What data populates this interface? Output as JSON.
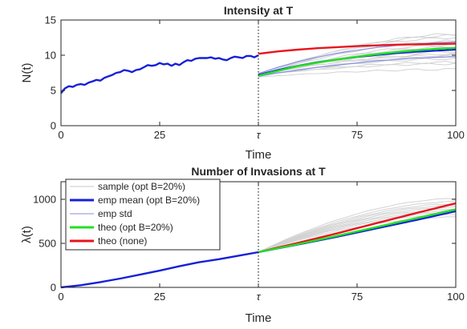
{
  "chart_data": [
    {
      "type": "line",
      "title": "Intensity at T",
      "xlabel": "Time",
      "ylabel": "N(t)",
      "xlim": [
        0,
        100
      ],
      "ylim": [
        0,
        15
      ],
      "xticks": [
        {
          "value": 0,
          "label": "0"
        },
        {
          "value": 25,
          "label": "25"
        },
        {
          "value": 50,
          "label": "τ"
        },
        {
          "value": 75,
          "label": "75"
        },
        {
          "value": 100,
          "label": "100"
        }
      ],
      "yticks": [
        {
          "value": 0,
          "label": "0"
        },
        {
          "value": 5,
          "label": "5"
        },
        {
          "value": 10,
          "label": "10"
        },
        {
          "value": 15,
          "label": "15"
        }
      ],
      "vline": 50,
      "series": [
        {
          "role": "history",
          "color": "#1520d8",
          "x": [
            0,
            1,
            2,
            3,
            4,
            5,
            6,
            7,
            8,
            9,
            10,
            11,
            12,
            13,
            14,
            15,
            16,
            17,
            18,
            19,
            20,
            21,
            22,
            23,
            24,
            25,
            26,
            27,
            28,
            29,
            30,
            31,
            32,
            33,
            34,
            35,
            36,
            37,
            38,
            39,
            40,
            41,
            42,
            43,
            44,
            45,
            46,
            47,
            48,
            49,
            50
          ],
          "y": [
            4.6,
            5.3,
            5.6,
            5.5,
            5.8,
            5.9,
            5.8,
            6.1,
            6.3,
            6.5,
            6.4,
            6.8,
            7.0,
            7.2,
            7.5,
            7.6,
            7.9,
            7.8,
            7.6,
            7.9,
            8.0,
            8.3,
            8.6,
            8.5,
            8.6,
            8.9,
            8.7,
            8.8,
            8.5,
            8.8,
            8.6,
            9.0,
            9.3,
            9.2,
            9.5,
            9.6,
            9.6,
            9.6,
            9.7,
            9.5,
            9.6,
            9.4,
            9.3,
            9.6,
            9.8,
            9.7,
            9.6,
            9.9,
            9.9,
            9.7,
            10.0
          ]
        },
        {
          "role": "theo-none",
          "color": "#e8141c",
          "x": [
            50,
            55,
            60,
            65,
            70,
            75,
            80,
            85,
            90,
            95,
            100
          ],
          "y": [
            10.2,
            10.55,
            10.8,
            11.0,
            11.15,
            11.3,
            11.4,
            11.5,
            11.55,
            11.6,
            11.65
          ]
        },
        {
          "role": "emp-mean",
          "color": "#1520d8",
          "x": [
            50,
            55,
            60,
            65,
            70,
            75,
            80,
            85,
            90,
            95,
            100
          ],
          "y": [
            7.2,
            7.9,
            8.5,
            9.0,
            9.4,
            9.75,
            10.05,
            10.3,
            10.5,
            10.65,
            10.8
          ]
        },
        {
          "role": "theo-opt",
          "color": "#22e022",
          "x": [
            50,
            55,
            60,
            65,
            70,
            75,
            80,
            85,
            90,
            95,
            100
          ],
          "y": [
            7.1,
            7.8,
            8.45,
            8.95,
            9.4,
            9.8,
            10.15,
            10.45,
            10.7,
            10.9,
            11.05
          ]
        },
        {
          "role": "emp-std",
          "color": "#8a8ee6",
          "x": [
            50,
            55,
            60,
            65,
            70,
            75,
            80,
            85,
            90,
            95,
            100
          ],
          "y_upper": [
            7.4,
            8.3,
            9.1,
            9.7,
            10.3,
            10.7,
            11.1,
            11.4,
            11.6,
            11.8,
            11.9
          ],
          "y_lower": [
            7.0,
            7.5,
            7.9,
            8.3,
            8.6,
            8.9,
            9.2,
            9.4,
            9.6,
            9.7,
            9.8
          ]
        }
      ],
      "samples": {
        "color": "#d2d2d2",
        "x_start": 50,
        "x_end": 100,
        "start_values": [
          6.9,
          7.0,
          7.1,
          7.2,
          7.3,
          7.0,
          7.2,
          7.1,
          7.4,
          7.0,
          7.2,
          7.3,
          7.1,
          7.2,
          7.0
        ],
        "end_values": [
          8.0,
          13.0,
          9.5,
          12.0,
          10.5,
          11.5,
          9.0,
          12.5,
          10.0,
          11.0,
          8.8,
          12.8,
          11.2,
          10.2,
          9.8
        ]
      }
    },
    {
      "type": "line",
      "title": "Number of Invasions at T",
      "xlabel": "Time",
      "ylabel": "λ(t)",
      "xlim": [
        0,
        100
      ],
      "ylim": [
        0,
        1200
      ],
      "xticks": [
        {
          "value": 0,
          "label": "0"
        },
        {
          "value": 25,
          "label": "25"
        },
        {
          "value": 50,
          "label": "τ"
        },
        {
          "value": 75,
          "label": "75"
        },
        {
          "value": 100,
          "label": "100"
        }
      ],
      "yticks": [
        {
          "value": 0,
          "label": "0"
        },
        {
          "value": 500,
          "label": "500"
        },
        {
          "value": 1000,
          "label": "1000"
        }
      ],
      "vline": 50,
      "series": [
        {
          "role": "history",
          "color": "#1520d8",
          "x": [
            0,
            2,
            5,
            10,
            15,
            20,
            25,
            30,
            35,
            40,
            45,
            50
          ],
          "y": [
            0,
            10,
            25,
            60,
            100,
            145,
            190,
            240,
            285,
            320,
            360,
            400
          ]
        },
        {
          "role": "theo-none",
          "color": "#e8141c",
          "x": [
            50,
            60,
            70,
            80,
            90,
            100
          ],
          "y": [
            400,
            505,
            615,
            730,
            845,
            955
          ]
        },
        {
          "role": "emp-mean",
          "color": "#1520d8",
          "x": [
            50,
            60,
            70,
            80,
            90,
            100
          ],
          "y": [
            400,
            485,
            575,
            670,
            765,
            865
          ]
        },
        {
          "role": "theo-opt",
          "color": "#22e022",
          "x": [
            50,
            60,
            70,
            80,
            90,
            100
          ],
          "y": [
            400,
            490,
            585,
            685,
            785,
            885
          ]
        }
      ],
      "samples": {
        "color": "#d2d2d2",
        "x_start": 50,
        "x_end": 100,
        "start_values": [
          400,
          400,
          400,
          400,
          400,
          400,
          400,
          400,
          400,
          400
        ],
        "end_values": [
          800,
          830,
          850,
          870,
          890,
          910,
          930,
          950,
          975,
          1010
        ]
      },
      "legend": {
        "position": "top-left",
        "entries": [
          {
            "label": "sample (opt B=20%)",
            "color": "#c8c8c8"
          },
          {
            "label": "emp mean (opt B=20%)",
            "color": "#1520d8"
          },
          {
            "label": "emp std",
            "color": "#8a8ee6"
          },
          {
            "label": "theo (opt B=20%)",
            "color": "#22e022"
          },
          {
            "label": "theo (none)",
            "color": "#e8141c"
          }
        ]
      }
    }
  ]
}
